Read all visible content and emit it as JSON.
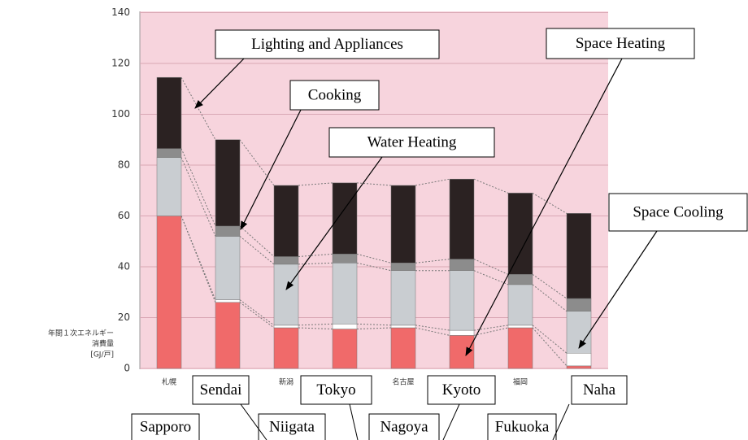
{
  "chart_data": {
    "type": "bar",
    "stacked": true,
    "ylabel": [
      "年間１次エネルギー",
      "消費量",
      "[GJ/戸]"
    ],
    "categories": [
      "Sapporo",
      "Sendai",
      "Niigata",
      "Tokyo",
      "Nagoya",
      "Kyoto",
      "Fukuoka",
      "Naha"
    ],
    "category_labels_local": [
      "札幌",
      null,
      "新潟",
      null,
      "名古屋",
      null,
      "福岡",
      null
    ],
    "ylim": [
      0,
      140
    ],
    "yticks": [
      0,
      20,
      40,
      60,
      80,
      100,
      120,
      140
    ],
    "grid": true,
    "series": [
      {
        "name": "Space Heating",
        "color": "#f06a6a",
        "values": [
          60,
          26,
          16,
          15.5,
          16,
          13,
          16,
          1
        ]
      },
      {
        "name": "Space Cooling",
        "color": "#ffffff",
        "values": [
          0,
          1,
          1,
          2,
          1,
          2,
          1,
          5
        ]
      },
      {
        "name": "Water Heating",
        "color": "#c9cdd1",
        "values": [
          23,
          25,
          24,
          24,
          21.5,
          23.5,
          16,
          16.5
        ]
      },
      {
        "name": "Cooking",
        "color": "#8c8c8c",
        "values": [
          3.5,
          4,
          3,
          3.5,
          3,
          4.5,
          4,
          5
        ]
      },
      {
        "name": "Lighting and Appliances",
        "color": "#2b2222",
        "values": [
          28,
          34,
          28,
          28,
          30.5,
          31.5,
          32,
          33.5
        ]
      }
    ]
  }
}
